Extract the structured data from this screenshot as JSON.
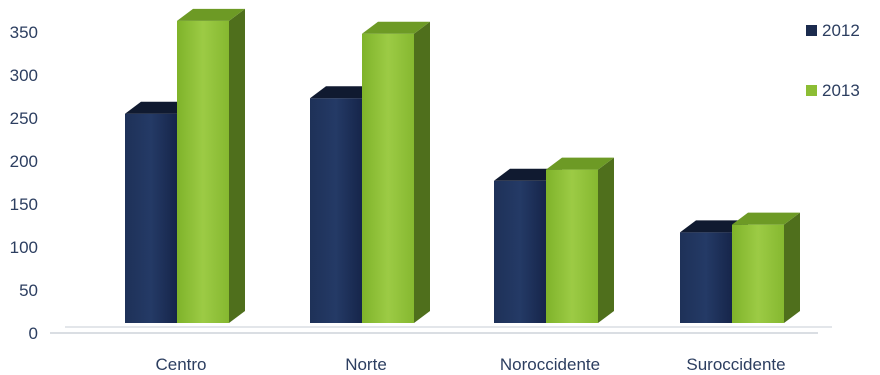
{
  "chart_data": {
    "type": "bar",
    "categories": [
      "Centro",
      "Norte",
      "Noroccidente",
      "Suroccidente"
    ],
    "series": [
      {
        "name": "2012",
        "values": [
          255,
          273,
          177,
          117
        ],
        "color": "#1b2b4e"
      },
      {
        "name": "2013",
        "values": [
          363,
          348,
          190,
          126
        ],
        "color": "#8cbd34"
      }
    ],
    "yticks": [
      0,
      50,
      100,
      150,
      200,
      250,
      300,
      350
    ],
    "ylim": [
      0,
      350
    ],
    "grid": false,
    "legend_position": "top-right",
    "style": "3d-columns"
  }
}
